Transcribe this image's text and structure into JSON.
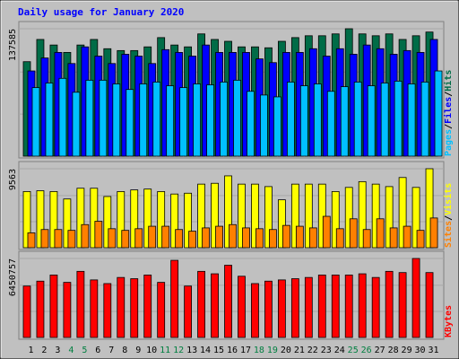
{
  "chart_data": {
    "type": "bar",
    "title": "Daily usage for January 2020",
    "categories": [
      "1",
      "2",
      "3",
      "4",
      "5",
      "6",
      "7",
      "8",
      "9",
      "10",
      "11",
      "12",
      "13",
      "14",
      "15",
      "16",
      "17",
      "18",
      "19",
      "20",
      "21",
      "22",
      "23",
      "24",
      "25",
      "26",
      "27",
      "28",
      "29",
      "30",
      "31"
    ],
    "weekend_days": [
      "4",
      "5",
      "11",
      "12",
      "18",
      "19",
      "25",
      "26"
    ],
    "panels": [
      {
        "id": "hits-files-pages",
        "ymax_label": "137585",
        "ymax": 137585,
        "series": [
          {
            "name": "Hits",
            "color": "#006c47",
            "values": [
              102000,
              126000,
              120000,
              112000,
              120000,
              126000,
              116000,
              114000,
              114000,
              118000,
              128000,
              120000,
              118000,
              132000,
              126000,
              124000,
              118000,
              118000,
              117000,
              124000,
              128000,
              130000,
              130000,
              132000,
              137585,
              132000,
              130000,
              132000,
              126000,
              130000,
              134000
            ]
          },
          {
            "name": "Files",
            "color": "#0000ff",
            "values": [
              92000,
              106000,
              112000,
              100000,
              118000,
              108000,
              100000,
              110000,
              108000,
              100000,
              115000,
              112000,
              108000,
              120000,
              112000,
              112000,
              112000,
              105000,
              101000,
              112000,
              112000,
              116000,
              108000,
              116000,
              110000,
              120000,
              116000,
              110000,
              114000,
              112000,
              126000
            ]
          },
          {
            "name": "Pages",
            "color": "#00c0ff",
            "values": [
              74000,
              79000,
              84000,
              69000,
              82000,
              82000,
              78000,
              72000,
              78000,
              80000,
              76000,
              74000,
              78000,
              77000,
              80000,
              82000,
              70000,
              66000,
              64000,
              80000,
              76000,
              78000,
              70000,
              75000,
              80000,
              76000,
              79000,
              81000,
              78000,
              80000,
              92000
            ]
          }
        ],
        "legend_labels": [
          "Pages",
          "/",
          "Files",
          "/",
          "Hits"
        ]
      },
      {
        "id": "visits-sites",
        "ymax_label": "9563",
        "ymax": 9563,
        "series": [
          {
            "name": "Visits",
            "color": "#ffff00",
            "values": [
              6800,
              6900,
              6800,
              5900,
              7200,
              7200,
              6200,
              6800,
              7000,
              7100,
              6800,
              6500,
              6600,
              7700,
              7800,
              8700,
              7700,
              7700,
              7400,
              5800,
              7700,
              7700,
              7700,
              6800,
              7300,
              8000,
              7700,
              7400,
              8500,
              7300,
              9563
            ]
          },
          {
            "name": "Sites",
            "color": "#ff8000",
            "values": [
              1800,
              2200,
              2200,
              2100,
              2800,
              3200,
              2300,
              2100,
              2300,
              2600,
              2600,
              2200,
              2000,
              2400,
              2600,
              2800,
              2400,
              2300,
              2200,
              2700,
              2600,
              2400,
              3800,
              2300,
              3500,
              2200,
              3500,
              2400,
              2600,
              2100,
              3600
            ]
          }
        ],
        "legend_labels": [
          "Sites",
          "/",
          "Visits"
        ]
      },
      {
        "id": "kbytes",
        "ymax_label": "6450757",
        "ymax": 6450757,
        "series": [
          {
            "name": "KBytes",
            "color": "#ff0000",
            "values": [
              4200000,
              4600000,
              5100000,
              4500000,
              5400000,
              4700000,
              4400000,
              4900000,
              4800000,
              5100000,
              4500000,
              6300000,
              4200000,
              5400000,
              5200000,
              5900000,
              5000000,
              4400000,
              4600000,
              4700000,
              4800000,
              4900000,
              5100000,
              5100000,
              5100000,
              5200000,
              4900000,
              5400000,
              5300000,
              6450757,
              5300000
            ]
          }
        ],
        "legend_labels": [
          "KBytes"
        ]
      }
    ],
    "colors": {
      "background": "#c0c0c0",
      "title": "#0000ff",
      "weekday_label": "#000000",
      "weekend_label": "#007f40",
      "legend_separator": "#000000"
    }
  }
}
